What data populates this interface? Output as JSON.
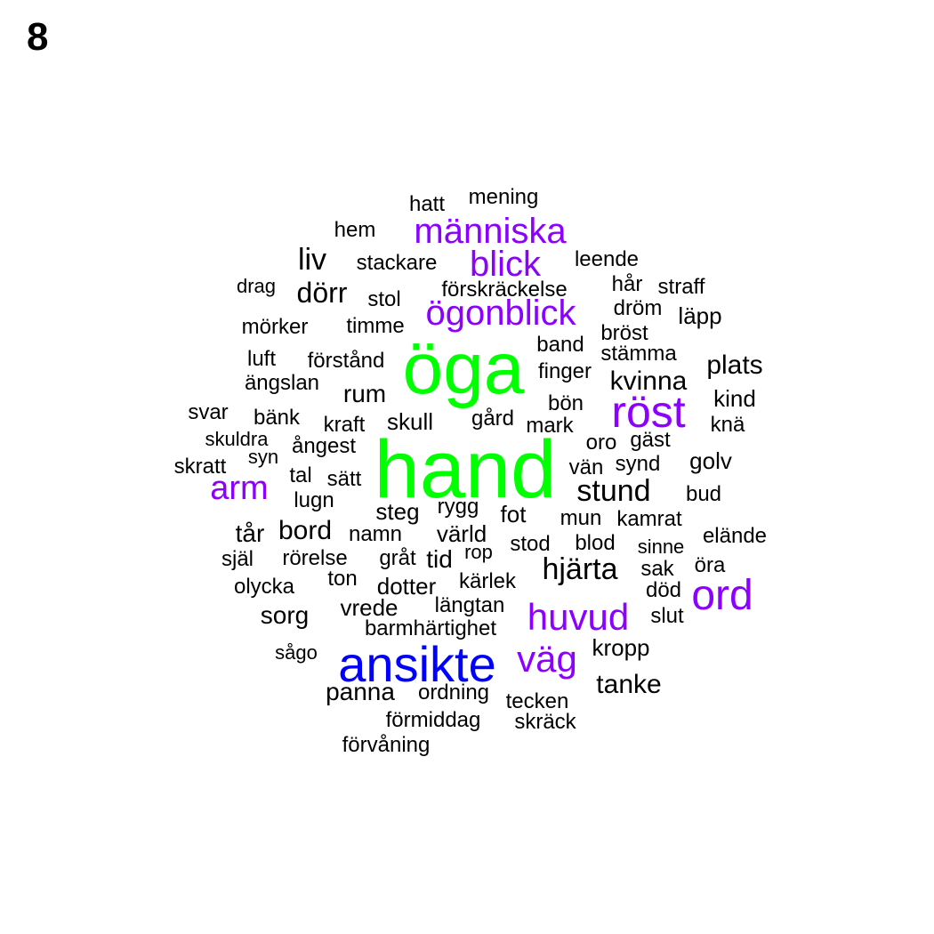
{
  "panel_label": "8",
  "colors": {
    "top": "#00ff00",
    "second": "#0000ff",
    "third": "#8b00ff",
    "rest": "#000000"
  },
  "words": [
    {
      "text": "hand",
      "tier": "top",
      "weight": 90
    },
    {
      "text": "öga",
      "tier": "top",
      "weight": 80
    },
    {
      "text": "ansikte",
      "tier": "second",
      "weight": 60
    },
    {
      "text": "röst",
      "tier": "third",
      "weight": 55
    },
    {
      "text": "ord",
      "tier": "third",
      "weight": 50
    },
    {
      "text": "huvud",
      "tier": "third",
      "weight": 45
    },
    {
      "text": "väg",
      "tier": "third",
      "weight": 42
    },
    {
      "text": "människa",
      "tier": "third",
      "weight": 41
    },
    {
      "text": "blick",
      "tier": "third",
      "weight": 41
    },
    {
      "text": "ögonblick",
      "tier": "third",
      "weight": 40
    },
    {
      "text": "arm",
      "tier": "third",
      "weight": 39
    },
    {
      "text": "hjärta",
      "tier": "rest",
      "weight": 35
    },
    {
      "text": "stund",
      "tier": "rest",
      "weight": 34
    },
    {
      "text": "tanke",
      "tier": "rest",
      "weight": 30
    },
    {
      "text": "plats",
      "tier": "rest",
      "weight": 30
    },
    {
      "text": "kvinna",
      "tier": "rest",
      "weight": 30
    },
    {
      "text": "dörr",
      "tier": "rest",
      "weight": 30
    },
    {
      "text": "liv",
      "tier": "rest",
      "weight": 30
    },
    {
      "text": "rum",
      "tier": "rest",
      "weight": 29
    },
    {
      "text": "kropp",
      "tier": "rest",
      "weight": 28
    },
    {
      "text": "sorg",
      "tier": "rest",
      "weight": 28
    },
    {
      "text": "bord",
      "tier": "rest",
      "weight": 28
    },
    {
      "text": "panna",
      "tier": "rest",
      "weight": 28
    },
    {
      "text": "golv",
      "tier": "rest",
      "weight": 27
    },
    {
      "text": "läpp",
      "tier": "rest",
      "weight": 27
    },
    {
      "text": "skull",
      "tier": "rest",
      "weight": 26
    },
    {
      "text": "värld",
      "tier": "rest",
      "weight": 26
    },
    {
      "text": "tid",
      "tier": "rest",
      "weight": 26
    },
    {
      "text": "vrede",
      "tier": "rest",
      "weight": 26
    },
    {
      "text": "fot",
      "tier": "rest",
      "weight": 26
    },
    {
      "text": "tår",
      "tier": "rest",
      "weight": 26
    },
    {
      "text": "dotter",
      "tier": "rest",
      "weight": 26
    },
    {
      "text": "steg",
      "tier": "rest",
      "weight": 25
    },
    {
      "text": "kind",
      "tier": "rest",
      "weight": 25
    },
    {
      "text": "stackare",
      "tier": "rest",
      "weight": 24
    },
    {
      "text": "leende",
      "tier": "rest",
      "weight": 24
    },
    {
      "text": "stol",
      "tier": "rest",
      "weight": 24
    },
    {
      "text": "rörelse",
      "tier": "rest",
      "weight": 24
    },
    {
      "text": "svar",
      "tier": "rest",
      "weight": 24
    },
    {
      "text": "bänk",
      "tier": "rest",
      "weight": 24
    },
    {
      "text": "kraft",
      "tier": "rest",
      "weight": 24
    },
    {
      "text": "gård",
      "tier": "rest",
      "weight": 24
    },
    {
      "text": "knä",
      "tier": "rest",
      "weight": 24
    },
    {
      "text": "tecken",
      "tier": "rest",
      "weight": 24
    },
    {
      "text": "förmiddag",
      "tier": "rest",
      "weight": 24
    },
    {
      "text": "olycka",
      "tier": "rest",
      "weight": 24
    },
    {
      "text": "själ",
      "tier": "rest",
      "weight": 24
    },
    {
      "text": "ton",
      "tier": "rest",
      "weight": 24
    },
    {
      "text": "dröm",
      "tier": "rest",
      "weight": 24
    },
    {
      "text": "hår",
      "tier": "rest",
      "weight": 24
    },
    {
      "text": "hem",
      "tier": "rest",
      "weight": 24
    },
    {
      "text": "hatt",
      "tier": "rest",
      "weight": 24
    },
    {
      "text": "mening",
      "tier": "rest",
      "weight": 24
    },
    {
      "text": "luft",
      "tier": "rest",
      "weight": 24
    },
    {
      "text": "ängslan",
      "tier": "rest",
      "weight": 24
    },
    {
      "text": "mörker",
      "tier": "rest",
      "weight": 24
    },
    {
      "text": "timme",
      "tier": "rest",
      "weight": 24
    },
    {
      "text": "förstånd",
      "tier": "rest",
      "weight": 24
    },
    {
      "text": "bröst",
      "tier": "rest",
      "weight": 24
    },
    {
      "text": "stämma",
      "tier": "rest",
      "weight": 24
    },
    {
      "text": "finger",
      "tier": "rest",
      "weight": 24
    },
    {
      "text": "blod",
      "tier": "rest",
      "weight": 24
    },
    {
      "text": "kamrat",
      "tier": "rest",
      "weight": 24
    },
    {
      "text": "mun",
      "tier": "rest",
      "weight": 24
    },
    {
      "text": "elände",
      "tier": "rest",
      "weight": 24
    },
    {
      "text": "kärlek",
      "tier": "rest",
      "weight": 24
    },
    {
      "text": "lugn",
      "tier": "rest",
      "weight": 24
    },
    {
      "text": "rygg",
      "tier": "rest",
      "weight": 24
    },
    {
      "text": "död",
      "tier": "rest",
      "weight": 24
    },
    {
      "text": "öra",
      "tier": "rest",
      "weight": 24
    },
    {
      "text": "skräck",
      "tier": "rest",
      "weight": 24
    },
    {
      "text": "förvåning",
      "tier": "rest",
      "weight": 24
    },
    {
      "text": "straff",
      "tier": "rest",
      "weight": 24
    },
    {
      "text": "förskräckelse",
      "tier": "rest",
      "weight": 24
    },
    {
      "text": "drag",
      "tier": "rest",
      "weight": 24
    },
    {
      "text": "band",
      "tier": "rest",
      "weight": 24
    },
    {
      "text": "bön",
      "tier": "rest",
      "weight": 24
    },
    {
      "text": "mark",
      "tier": "rest",
      "weight": 24
    },
    {
      "text": "gäst",
      "tier": "rest",
      "weight": 24
    },
    {
      "text": "oro",
      "tier": "rest",
      "weight": 24
    },
    {
      "text": "synd",
      "tier": "rest",
      "weight": 24
    },
    {
      "text": "vän",
      "tier": "rest",
      "weight": 24
    },
    {
      "text": "bud",
      "tier": "rest",
      "weight": 24
    },
    {
      "text": "skuldra",
      "tier": "rest",
      "weight": 24
    },
    {
      "text": "ångest",
      "tier": "rest",
      "weight": 24
    },
    {
      "text": "syn",
      "tier": "rest",
      "weight": 24
    },
    {
      "text": "skratt",
      "tier": "rest",
      "weight": 24
    },
    {
      "text": "tal",
      "tier": "rest",
      "weight": 24
    },
    {
      "text": "sätt",
      "tier": "rest",
      "weight": 24
    },
    {
      "text": "namn",
      "tier": "rest",
      "weight": 24
    },
    {
      "text": "gråt",
      "tier": "rest",
      "weight": 24
    },
    {
      "text": "rop",
      "tier": "rest",
      "weight": 24
    },
    {
      "text": "stod",
      "tier": "rest",
      "weight": 24
    },
    {
      "text": "sinne",
      "tier": "rest",
      "weight": 24
    },
    {
      "text": "sak",
      "tier": "rest",
      "weight": 24
    },
    {
      "text": "slut",
      "tier": "rest",
      "weight": 24
    },
    {
      "text": "längtan",
      "tier": "rest",
      "weight": 24
    },
    {
      "text": "barmhärtighet",
      "tier": "rest",
      "weight": 24
    },
    {
      "text": "ordning",
      "tier": "rest",
      "weight": 24
    },
    {
      "text": "sågo",
      "tier": "rest",
      "weight": 24
    }
  ]
}
